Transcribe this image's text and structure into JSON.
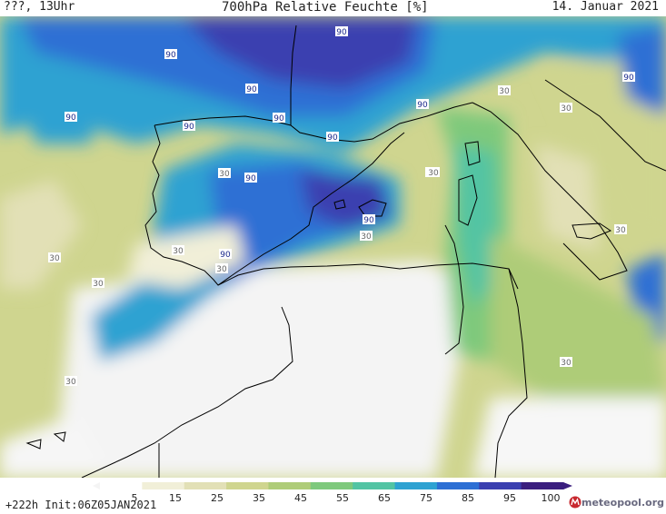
{
  "header": {
    "left": "???, 13Uhr",
    "title": "700hPa Relative Feuchte [%]",
    "date": "14. Januar 2021"
  },
  "footer": {
    "run_info": "+222h  Init:06Z05JAN2021",
    "logo_text": "meteopool.org"
  },
  "legend": {
    "ticks": [
      "5",
      "15",
      "25",
      "35",
      "45",
      "55",
      "65",
      "75",
      "85",
      "95",
      "100"
    ],
    "colors": [
      "#ffffff",
      "#f1efd8",
      "#e2e0b6",
      "#cfd58f",
      "#aecc78",
      "#7ec97c",
      "#52c4a3",
      "#2ea2d2",
      "#2d6fd4",
      "#3a3fb0",
      "#3a1e7e"
    ]
  },
  "map": {
    "contour_labels": [
      "90",
      "90",
      "90",
      "90",
      "90",
      "90",
      "90",
      "90",
      "90",
      "90",
      "90",
      "90",
      "30",
      "30",
      "30",
      "30",
      "30",
      "30",
      "30",
      "30",
      "30",
      "30",
      "30",
      "30",
      "30"
    ]
  }
}
